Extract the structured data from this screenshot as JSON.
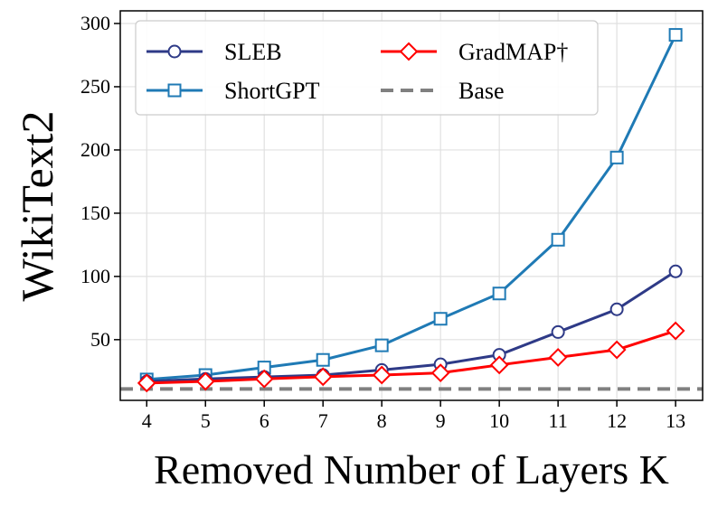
{
  "chart_data": {
    "type": "line",
    "title": "",
    "xlabel": "Removed Number of Layers K",
    "ylabel": "WikiText2",
    "x": [
      4,
      5,
      6,
      7,
      8,
      9,
      10,
      11,
      12,
      13
    ],
    "xlim": [
      3.55,
      13.46
    ],
    "ylim": [
      2,
      310
    ],
    "xticks": [
      4,
      5,
      6,
      7,
      8,
      9,
      10,
      11,
      12,
      13
    ],
    "yticks": [
      50,
      100,
      150,
      200,
      250,
      300
    ],
    "grid": true,
    "legend_placement": "top-left",
    "series": [
      {
        "name": "SLEB",
        "marker": "circle",
        "color": "#2e3a87",
        "values": [
          17,
          19,
          20.5,
          22,
          26,
          30.5,
          38,
          56,
          74,
          104
        ]
      },
      {
        "name": "ShortGPT",
        "marker": "square",
        "color": "#1f7ab5",
        "values": [
          18.5,
          22,
          28,
          34,
          45.5,
          66.5,
          86.5,
          129,
          194,
          291
        ]
      },
      {
        "name": "GradMAP†",
        "marker": "diamond",
        "color": "#ff0000",
        "values": [
          15.7,
          17,
          19,
          20.7,
          22,
          23.7,
          30,
          36,
          42,
          57
        ]
      },
      {
        "name": "Base",
        "marker": "none",
        "dashed": true,
        "color": "#808080",
        "constant": 11
      }
    ]
  }
}
